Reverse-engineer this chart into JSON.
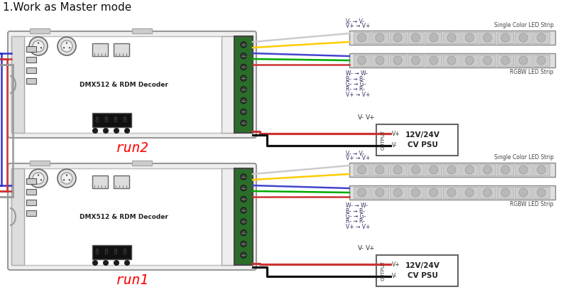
{
  "title": "1.Work as Master mode",
  "title_fontsize": 11,
  "bg_color": "#ffffff",
  "unit_label_top": "run2",
  "unit_label_bottom": "run1",
  "decoder_label": "DMX512 & RDM Decoder",
  "psu_label1": "12V/24V",
  "psu_label2": "CV PSU",
  "led_strip1_label": "Single Color LED Strip",
  "led_strip2_label": "RGBW LED Strip",
  "wire_colors_output": [
    "#cccccc",
    "#ffcc00",
    "#4444cc",
    "#00aa00",
    "#cc3333"
  ],
  "conn_labels_single": [
    "V- → V-",
    "V+ → V+"
  ],
  "conn_labels_rgbw": [
    "W- → W-",
    "B- → B-",
    "G- → G-",
    "R- → R-",
    "V+ → V+"
  ],
  "output_text": "OUTPUT"
}
